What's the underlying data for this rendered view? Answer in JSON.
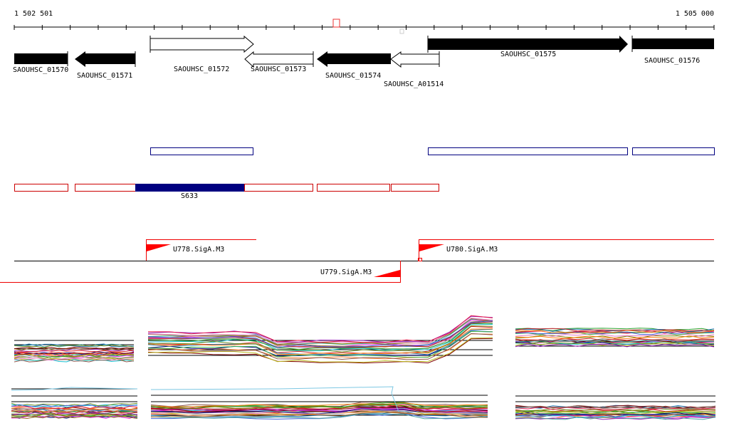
{
  "coords": {
    "start": "1 502 501",
    "end": "1 505 000"
  },
  "genes": [
    {
      "label": "SAOUHSC_01570",
      "strand": "+",
      "fill": "black"
    },
    {
      "label": "SAOUHSC_01571",
      "strand": "-",
      "fill": "black"
    },
    {
      "label": "SAOUHSC_01572",
      "strand": "+",
      "fill": "white"
    },
    {
      "label": "SAOUHSC_01573",
      "strand": "-",
      "fill": "white"
    },
    {
      "label": "SAOUHSC_01574",
      "strand": "-",
      "fill": "black"
    },
    {
      "label": "SAOUHSC_A01514",
      "strand": "-",
      "fill": "white"
    },
    {
      "label": "SAOUHSC_01575",
      "strand": "+",
      "fill": "black"
    },
    {
      "label": "SAOUHSC_01576",
      "strand": "+",
      "fill": "black"
    }
  ],
  "segments": {
    "highlight_label": "S633"
  },
  "promoters": [
    {
      "label": "U778.SigA.M3",
      "strand": "+"
    },
    {
      "label": "U780.SigA.M3",
      "strand": "+"
    },
    {
      "label": "U779.SigA.M3",
      "strand": "-"
    }
  ],
  "colors": {
    "gene_black": "#000000",
    "operon_outline": "#000080",
    "segment_outline": "#cc0000",
    "segment_highlight": "#000080",
    "promoter": "#ff0000"
  }
}
